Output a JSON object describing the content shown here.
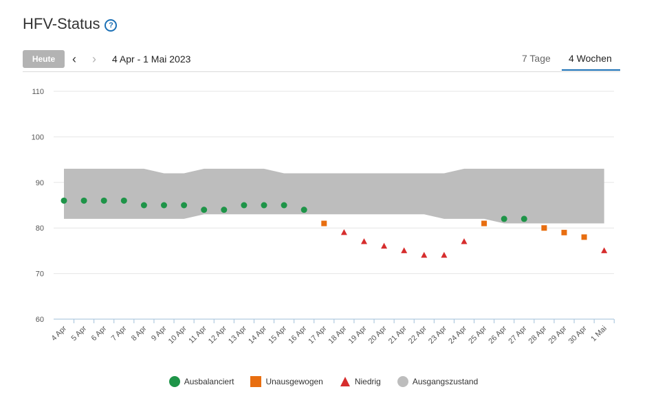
{
  "header": {
    "title": "HFV-Status",
    "help_icon": "?"
  },
  "toolbar": {
    "today_label": "Heute",
    "prev_icon": "‹",
    "next_icon": "›",
    "date_range": "4 Apr - 1 Mai 2023",
    "tabs": [
      {
        "label": "7 Tage",
        "active": false
      },
      {
        "label": "4 Wochen",
        "active": true
      }
    ]
  },
  "colors": {
    "balanced": "#1e9448",
    "unbalanced": "#e86e10",
    "low": "#d62d2d",
    "baseline": "#bdbdbd"
  },
  "chart_data": {
    "type": "scatter",
    "title": "HFV-Status",
    "ylim": [
      60,
      110
    ],
    "yticks": [
      "60",
      "70",
      "80",
      "90",
      "100",
      "110"
    ],
    "categories": [
      "4 Apr",
      "5 Apr",
      "6 Apr",
      "7 Apr",
      "8 Apr",
      "9 Apr",
      "10 Apr",
      "11 Apr",
      "12 Apr",
      "13 Apr",
      "14 Apr",
      "15 Apr",
      "16 Apr",
      "17 Apr",
      "18 Apr",
      "19 Apr",
      "20 Apr",
      "21 Apr",
      "22 Apr",
      "23 Apr",
      "24 Apr",
      "25 Apr",
      "26 Apr",
      "27 Apr",
      "28 Apr",
      "29 Apr",
      "30 Apr",
      "1 Mai"
    ],
    "baseline": {
      "name": "Ausgangszustand",
      "upper": [
        93,
        93,
        93,
        93,
        93,
        92,
        92,
        93,
        93,
        93,
        93,
        92,
        92,
        92,
        92,
        92,
        92,
        92,
        92,
        92,
        93,
        93,
        93,
        93,
        93,
        93,
        93,
        93
      ],
      "lower": [
        82,
        82,
        82,
        82,
        82,
        82,
        82,
        83,
        83,
        83,
        83,
        83,
        83,
        83,
        83,
        83,
        83,
        83,
        83,
        82,
        82,
        82,
        81,
        81,
        81,
        81,
        81,
        81
      ]
    },
    "series": [
      {
        "name": "Ausbalanciert",
        "marker": "circle",
        "points": [
          [
            0,
            86
          ],
          [
            1,
            86
          ],
          [
            2,
            86
          ],
          [
            3,
            86
          ],
          [
            4,
            85
          ],
          [
            5,
            85
          ],
          [
            6,
            85
          ],
          [
            7,
            84
          ],
          [
            8,
            84
          ],
          [
            9,
            85
          ],
          [
            10,
            85
          ],
          [
            11,
            85
          ],
          [
            12,
            84
          ],
          [
            22,
            82
          ],
          [
            23,
            82
          ]
        ]
      },
      {
        "name": "Unausgewogen",
        "marker": "square",
        "points": [
          [
            13,
            81
          ],
          [
            21,
            81
          ],
          [
            24,
            80
          ],
          [
            25,
            79
          ],
          [
            26,
            78
          ]
        ]
      },
      {
        "name": "Niedrig",
        "marker": "triangle",
        "points": [
          [
            14,
            79
          ],
          [
            15,
            77
          ],
          [
            16,
            76
          ],
          [
            17,
            75
          ],
          [
            18,
            74
          ],
          [
            19,
            74
          ],
          [
            20,
            77
          ],
          [
            27,
            75
          ]
        ]
      }
    ],
    "legend": [
      "Ausbalanciert",
      "Unausgewogen",
      "Niedrig",
      "Ausgangszustand"
    ]
  }
}
